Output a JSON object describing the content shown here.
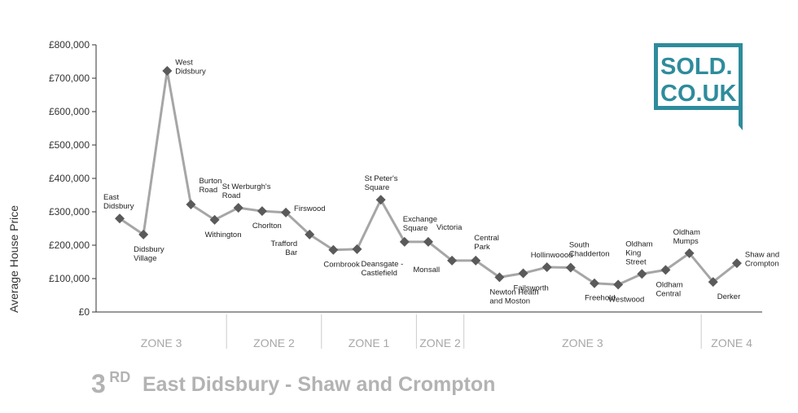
{
  "chart_data": {
    "type": "line",
    "ylabel": "Average House Price",
    "ylim": [
      0,
      800000
    ],
    "yticks": [
      "£0",
      "£100,000",
      "£200,000",
      "£300,000",
      "£400,000",
      "£500,000",
      "£600,000",
      "£700,000",
      "£800,000"
    ],
    "grid": false,
    "marker": "diamond",
    "points": [
      {
        "label": [
          "East",
          "Didsbury"
        ],
        "value": 280000,
        "pos": "above"
      },
      {
        "label": [
          "Didsbury",
          "Village"
        ],
        "value": 232000,
        "pos": "below"
      },
      {
        "label": [
          "West",
          "Didsbury"
        ],
        "value": 722000,
        "pos": "right"
      },
      {
        "label": [
          "Burton",
          "Road"
        ],
        "value": 322000,
        "pos": "right-up"
      },
      {
        "label": [
          "Withington"
        ],
        "value": 276000,
        "pos": "below"
      },
      {
        "label": [
          "St Werburgh's",
          "Road"
        ],
        "value": 312000,
        "pos": "above"
      },
      {
        "label": [
          "Chorlton"
        ],
        "value": 302000,
        "pos": "below"
      },
      {
        "label": [
          "Firswood"
        ],
        "value": 298000,
        "pos": "right"
      },
      {
        "label": [
          "Trafford",
          "Bar"
        ],
        "value": 232000,
        "pos": "below-left"
      },
      {
        "label": [
          "Cornbrook"
        ],
        "value": 186000,
        "pos": "below"
      },
      {
        "label": [
          "Deansgate -",
          "Castlefield"
        ],
        "value": 188000,
        "pos": "below-right"
      },
      {
        "label": [
          "St Peter's",
          "Square"
        ],
        "value": 336000,
        "pos": "above"
      },
      {
        "label": [
          "Exchange",
          "Square"
        ],
        "value": 210000,
        "pos": "above-right"
      },
      {
        "label": [
          "Victoria"
        ],
        "value": 210000,
        "pos": "right-up"
      },
      {
        "label": [
          "Monsall"
        ],
        "value": 154000,
        "pos": "below-left"
      },
      {
        "label": [
          "Central",
          "Park"
        ],
        "value": 154000,
        "pos": "above-right"
      },
      {
        "label": [
          "Newton Heath",
          "and Moston"
        ],
        "value": 104000,
        "pos": "below"
      },
      {
        "label": [
          "Failsworth"
        ],
        "value": 116000,
        "pos": "below"
      },
      {
        "label": [
          "Hollinwoood"
        ],
        "value": 134000,
        "pos": "above"
      },
      {
        "label": [
          "South",
          "Chadderton"
        ],
        "value": 133000,
        "pos": "above-right"
      },
      {
        "label": [
          "Freehold"
        ],
        "value": 86000,
        "pos": "below"
      },
      {
        "label": [
          "Westwood"
        ],
        "value": 82000,
        "pos": "below"
      },
      {
        "label": [
          "Oldham",
          "King",
          "Street"
        ],
        "value": 114000,
        "pos": "above"
      },
      {
        "label": [
          "Oldham",
          "Central"
        ],
        "value": 126000,
        "pos": "below"
      },
      {
        "label": [
          "Oldham",
          "Mumps"
        ],
        "value": 176000,
        "pos": "above"
      },
      {
        "label": [
          "Derker"
        ],
        "value": 90000,
        "pos": "below-right"
      },
      {
        "label": [
          "Shaw and",
          "Crompton"
        ],
        "value": 146000,
        "pos": "right"
      }
    ],
    "zones": [
      {
        "label": "ZONE 3",
        "from": 0,
        "to": 5
      },
      {
        "label": "ZONE 2",
        "from": 5,
        "to": 9
      },
      {
        "label": "ZONE 1",
        "from": 9,
        "to": 13
      },
      {
        "label": "ZONE 2",
        "from": 13,
        "to": 15
      },
      {
        "label": "ZONE 3",
        "from": 15,
        "to": 25
      },
      {
        "label": "ZONE 4",
        "from": 25,
        "to": 27
      }
    ],
    "colors": {
      "line": "#a6a6a6",
      "marker": "#5a5a5a",
      "axis": "#333333",
      "zone_text": "#a7a7a7",
      "zone_divider": "#cccccc",
      "title": "#b3b3b3",
      "logo": "#2e8c9c"
    }
  },
  "title": {
    "rank": "3",
    "rank_suffix": "RD",
    "text": "East Didsbury - Shaw and Crompton"
  },
  "logo": {
    "line1": "SOLD.",
    "line2": "CO.UK"
  }
}
